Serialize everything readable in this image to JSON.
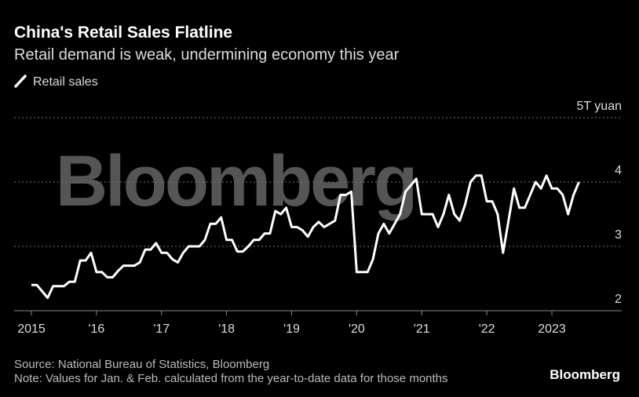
{
  "chart_data": {
    "type": "line",
    "title": "China's Retail Sales Flatline",
    "subtitle": "Retail demand is weak, undermining economy this year",
    "watermark": "Bloomberg",
    "source": "Source: National Bureau of Statistics, Bloomberg",
    "note": "Note: Values for Jan. & Feb. calculated from the year-to-date data for those months",
    "logo": "Bloomberg",
    "categories": [
      "2015",
      null,
      null,
      null,
      null,
      null,
      null,
      null,
      null,
      null,
      null,
      null,
      "'16",
      null,
      null,
      null,
      null,
      null,
      null,
      null,
      null,
      null,
      null,
      null,
      "'17",
      null,
      null,
      null,
      null,
      null,
      null,
      null,
      null,
      null,
      null,
      null,
      "'18",
      null,
      null,
      null,
      null,
      null,
      null,
      null,
      null,
      null,
      null,
      null,
      "'19",
      null,
      null,
      null,
      null,
      null,
      null,
      null,
      null,
      null,
      null,
      null,
      "'20",
      null,
      null,
      null,
      null,
      null,
      null,
      null,
      null,
      null,
      null,
      null,
      "'21",
      null,
      null,
      null,
      null,
      null,
      null,
      null,
      null,
      null,
      null,
      null,
      "'22",
      null,
      null,
      null,
      null,
      null,
      null,
      null,
      null,
      null,
      null,
      null,
      "2023",
      null,
      null,
      null,
      null,
      null
    ],
    "series": [
      {
        "name": "Retail sales",
        "color": "#ffffff",
        "values": [
          2.4,
          2.4,
          2.3,
          2.2,
          2.38,
          2.38,
          2.38,
          2.45,
          2.45,
          2.78,
          2.78,
          2.9,
          2.6,
          2.6,
          2.52,
          2.52,
          2.62,
          2.7,
          2.7,
          2.7,
          2.75,
          2.95,
          2.95,
          3.05,
          2.9,
          2.9,
          2.8,
          2.75,
          2.9,
          3.0,
          3.0,
          3.0,
          3.1,
          3.35,
          3.35,
          3.45,
          3.1,
          3.1,
          2.92,
          2.92,
          3.0,
          3.1,
          3.1,
          3.2,
          3.2,
          3.55,
          3.5,
          3.6,
          3.3,
          3.3,
          3.25,
          3.15,
          3.3,
          3.38,
          3.3,
          3.35,
          3.4,
          3.8,
          3.8,
          3.85,
          2.6,
          2.6,
          2.6,
          2.8,
          3.2,
          3.35,
          3.2,
          3.35,
          3.5,
          3.85,
          3.95,
          4.05,
          3.5,
          3.5,
          3.5,
          3.3,
          3.5,
          3.8,
          3.5,
          3.4,
          3.65,
          4.0,
          4.1,
          4.1,
          3.7,
          3.7,
          3.5,
          2.9,
          3.4,
          3.9,
          3.6,
          3.6,
          3.8,
          4.0,
          3.9,
          4.1,
          3.9,
          3.9,
          3.8,
          3.5,
          3.8,
          4.0
        ]
      }
    ],
    "ylim": [
      2,
      5
    ],
    "yticks": [
      2,
      3,
      4,
      {
        "value": 5,
        "label": "5T yuan"
      }
    ],
    "grid": true
  }
}
